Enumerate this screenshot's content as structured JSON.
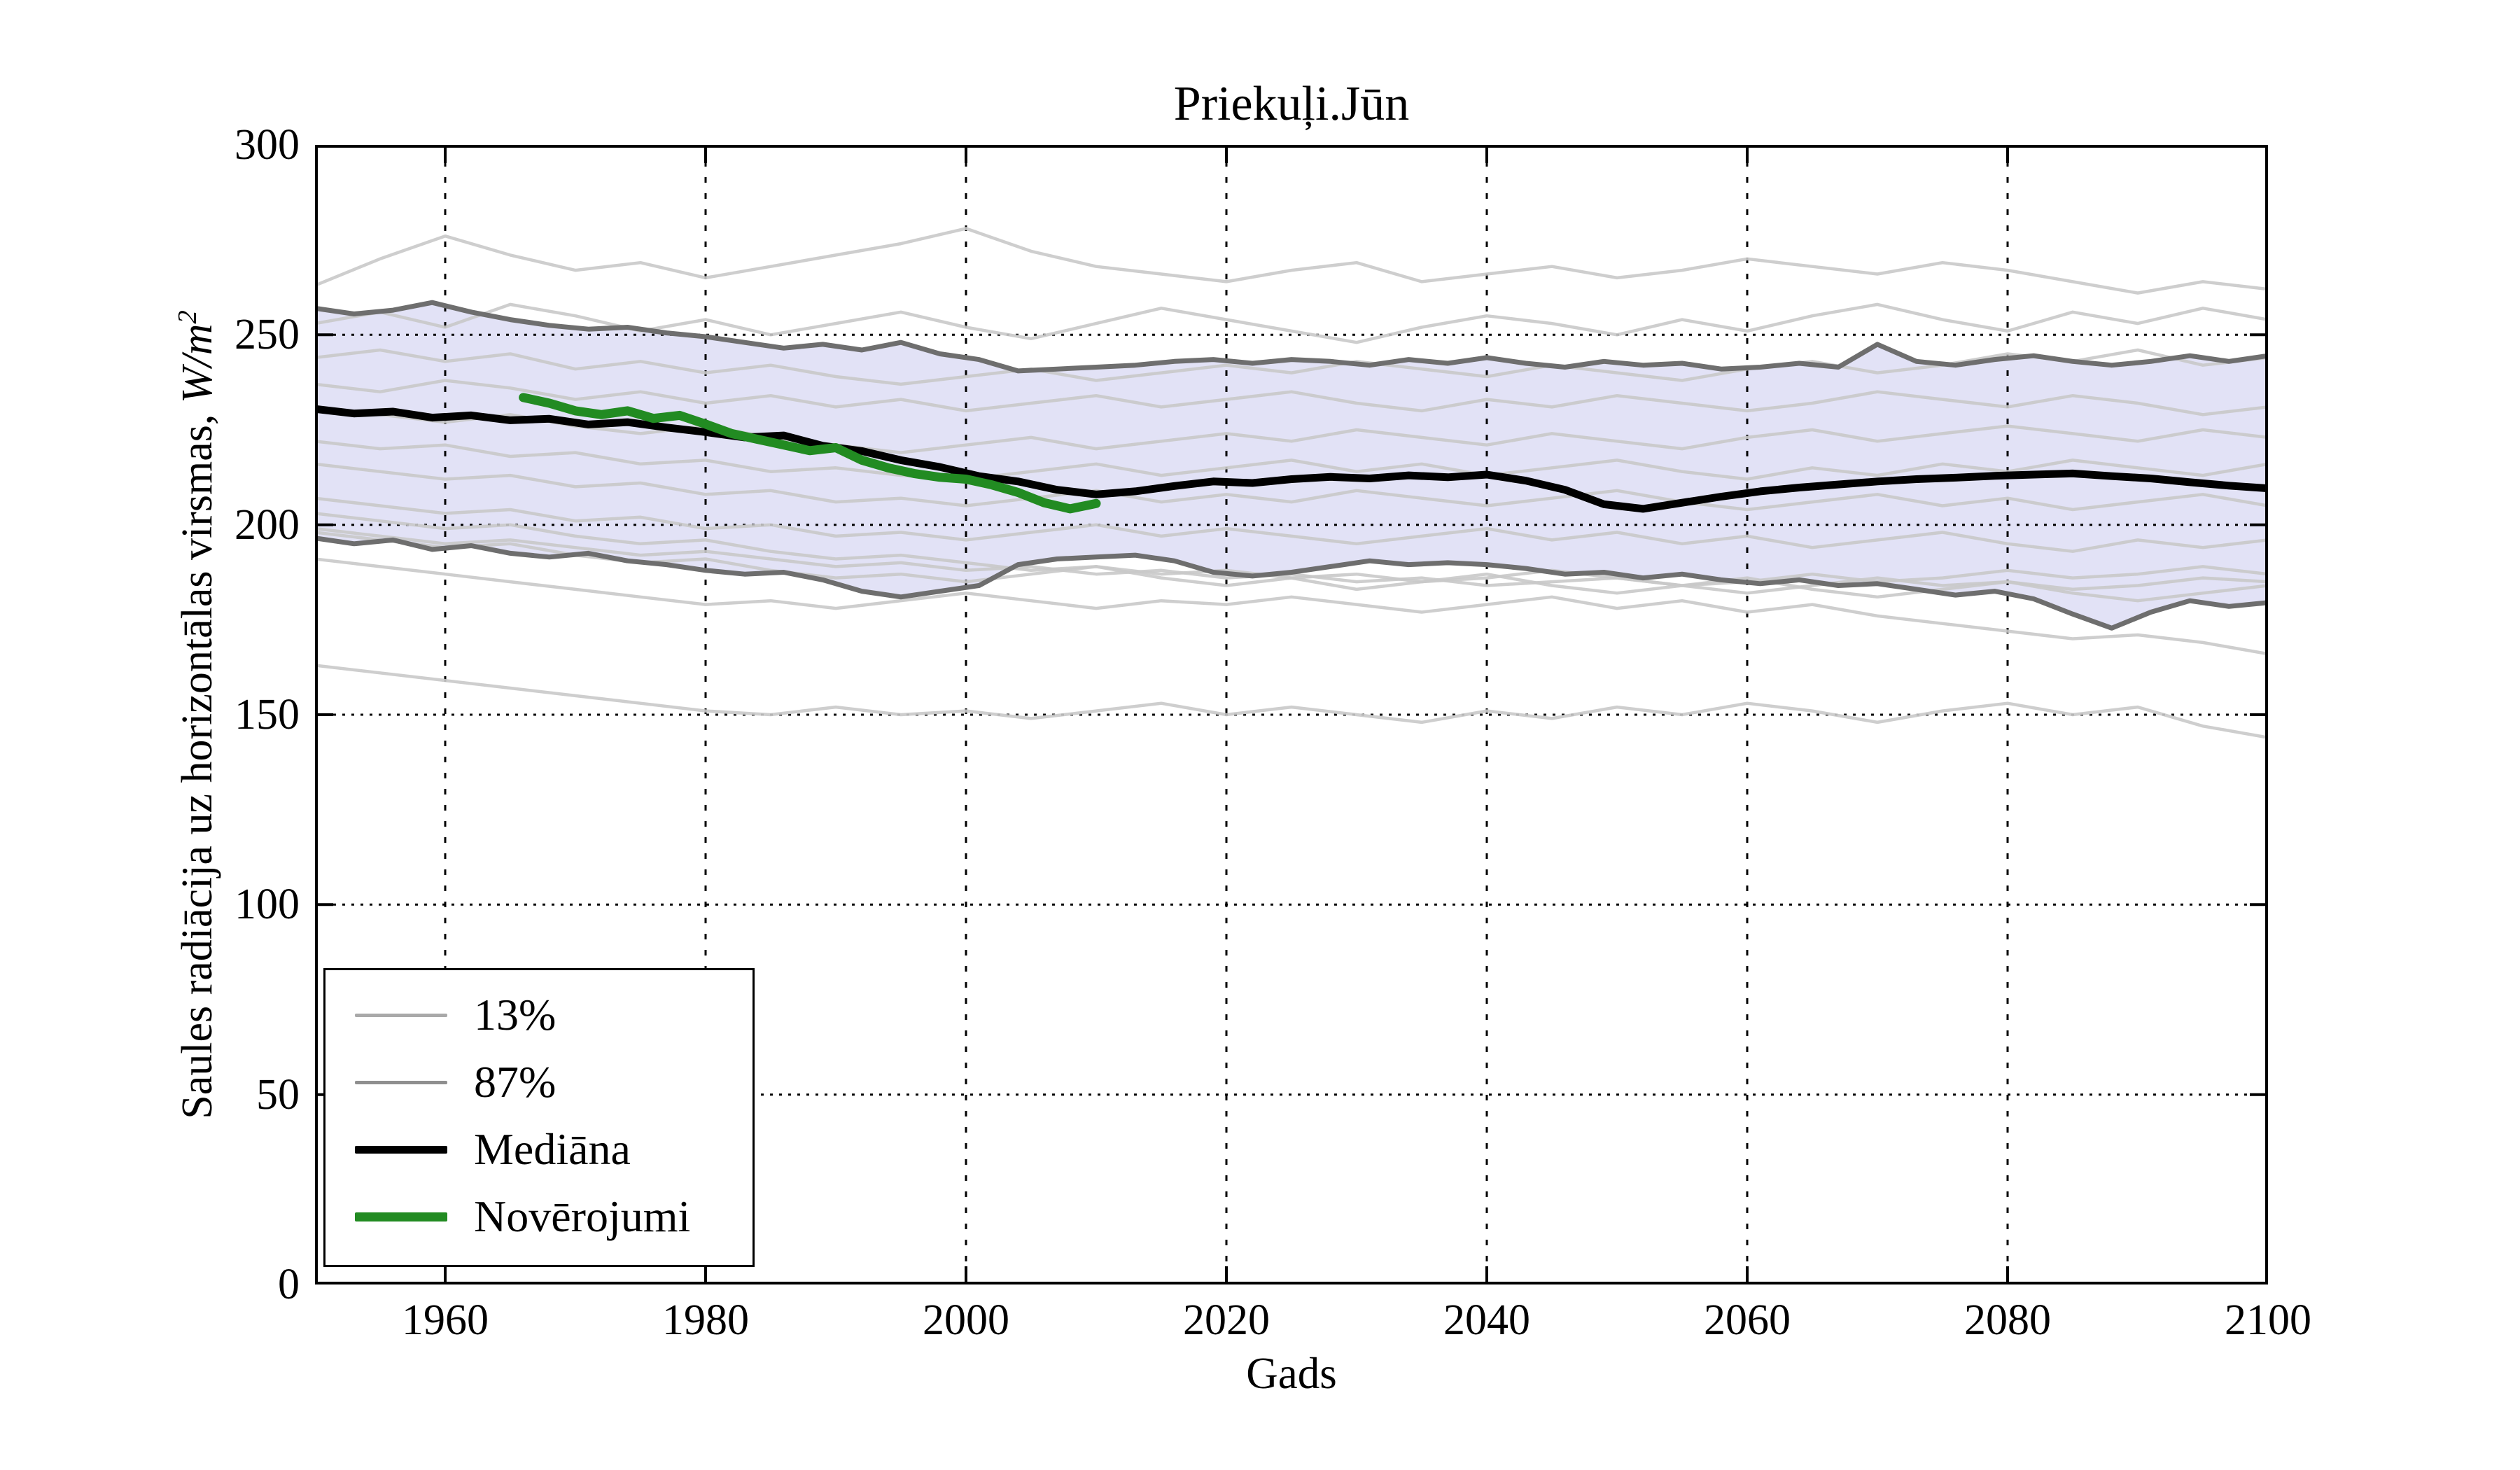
{
  "figure": {
    "title": "Priekuļi.Jūn",
    "xlabel": "Gads",
    "ylabel_text": "Saules radiācija uz horizontālas virsmas, ",
    "ylabel_unit": "W/m",
    "ylabel_exp": "2",
    "background": "#ffffff"
  },
  "legend": {
    "items": [
      {
        "label": "13%",
        "color": "#a9a9a9",
        "line_width": 5
      },
      {
        "label": "87%",
        "color": "#8f8f8f",
        "line_width": 5
      },
      {
        "label": "Mediāna",
        "color": "#000000",
        "line_width": 11
      },
      {
        "label": "Novērojumi",
        "color": "#228b22",
        "line_width": 13
      }
    ]
  },
  "chart_data": {
    "type": "line",
    "title": "Priekuļi.Jūn",
    "xlabel": "Gads",
    "ylabel": "Saules radiācija uz horizontālas virsmas, W/m²",
    "x_range": [
      1950,
      2100
    ],
    "y_range": [
      0,
      300
    ],
    "x_ticks": [
      1960,
      1980,
      2000,
      2020,
      2040,
      2060,
      2080,
      2100
    ],
    "y_ticks": [
      0,
      50,
      100,
      150,
      200,
      250,
      300
    ],
    "grid": "dotted",
    "grid_color": "#000000",
    "band_fill": "#e2e2f6",
    "band_name": "13-87% interval",
    "series": [
      {
        "name": "ensemble-1",
        "role": "ensemble",
        "color": "#c9c9c9",
        "width": 4.5,
        "opacity": 0.9,
        "x_start": 1950,
        "x_step": 5,
        "values": [
          263,
          270,
          276,
          271,
          267,
          269,
          265,
          268,
          271,
          274,
          278,
          272,
          268,
          266,
          264,
          267,
          269,
          264,
          266,
          268,
          265,
          267,
          270,
          268,
          266,
          269,
          267,
          264,
          261,
          264,
          262
        ]
      },
      {
        "name": "ensemble-2",
        "role": "ensemble",
        "color": "#c9c9c9",
        "width": 4.5,
        "opacity": 0.9,
        "x_start": 1950,
        "x_step": 5,
        "values": [
          253,
          256,
          252,
          258,
          255,
          251,
          254,
          250,
          253,
          256,
          252,
          249,
          253,
          257,
          254,
          251,
          248,
          252,
          255,
          253,
          250,
          254,
          251,
          255,
          258,
          254,
          251,
          256,
          253,
          257,
          254
        ]
      },
      {
        "name": "ensemble-3",
        "role": "ensemble",
        "color": "#c9c9c9",
        "width": 4.5,
        "opacity": 0.9,
        "x_start": 1950,
        "x_step": 5,
        "values": [
          244,
          246,
          243,
          245,
          241,
          243,
          240,
          242,
          239,
          237,
          239,
          241,
          238,
          240,
          242,
          240,
          243,
          241,
          239,
          242,
          240,
          238,
          241,
          243,
          240,
          242,
          245,
          243,
          246,
          242,
          244
        ]
      },
      {
        "name": "ensemble-4",
        "role": "ensemble",
        "color": "#c9c9c9",
        "width": 4.5,
        "opacity": 0.9,
        "x_start": 1950,
        "x_step": 5,
        "values": [
          237,
          235,
          238,
          236,
          233,
          235,
          232,
          234,
          231,
          233,
          230,
          232,
          234,
          231,
          233,
          235,
          232,
          230,
          233,
          231,
          234,
          232,
          230,
          232,
          235,
          233,
          231,
          234,
          232,
          229,
          231
        ]
      },
      {
        "name": "ensemble-5",
        "role": "ensemble",
        "color": "#c9c9c9",
        "width": 4.5,
        "opacity": 0.9,
        "x_start": 1950,
        "x_step": 5,
        "values": [
          231,
          229,
          227,
          229,
          226,
          224,
          226,
          223,
          221,
          219,
          221,
          223,
          220,
          222,
          224,
          222,
          225,
          223,
          221,
          224,
          222,
          220,
          223,
          225,
          222,
          224,
          226,
          224,
          222,
          225,
          223
        ]
      },
      {
        "name": "ensemble-6",
        "role": "ensemble",
        "color": "#c9c9c9",
        "width": 4.5,
        "opacity": 0.9,
        "x_start": 1950,
        "x_step": 5,
        "values": [
          222,
          220,
          221,
          218,
          219,
          216,
          217,
          214,
          215,
          213,
          212,
          214,
          216,
          213,
          215,
          217,
          214,
          216,
          213,
          215,
          217,
          214,
          212,
          215,
          213,
          216,
          214,
          217,
          215,
          213,
          216
        ]
      },
      {
        "name": "ensemble-7",
        "role": "ensemble",
        "color": "#c9c9c9",
        "width": 4.5,
        "opacity": 0.9,
        "x_start": 1950,
        "x_step": 5,
        "values": [
          216,
          214,
          212,
          213,
          210,
          211,
          208,
          209,
          206,
          207,
          205,
          207,
          209,
          206,
          208,
          206,
          209,
          207,
          205,
          207,
          209,
          206,
          204,
          206,
          208,
          205,
          207,
          204,
          206,
          208,
          205
        ]
      },
      {
        "name": "ensemble-8",
        "role": "ensemble",
        "color": "#c9c9c9",
        "width": 4.5,
        "opacity": 0.9,
        "x_start": 1950,
        "x_step": 5,
        "values": [
          207,
          205,
          203,
          204,
          201,
          202,
          199,
          200,
          197,
          198,
          196,
          198,
          200,
          197,
          199,
          197,
          195,
          197,
          199,
          196,
          198,
          195,
          197,
          194,
          196,
          198,
          195,
          193,
          196,
          194,
          196
        ]
      },
      {
        "name": "ensemble-9",
        "role": "ensemble",
        "color": "#c9c9c9",
        "width": 4.5,
        "opacity": 0.9,
        "x_start": 1950,
        "x_step": 5,
        "values": [
          203,
          201,
          199,
          200,
          197,
          195,
          196,
          193,
          191,
          192,
          190,
          188,
          189,
          187,
          188,
          186,
          187,
          185,
          186,
          188,
          186,
          184,
          185,
          187,
          185,
          186,
          188,
          186,
          187,
          189,
          187
        ]
      },
      {
        "name": "ensemble-10",
        "role": "ensemble",
        "color": "#c9c9c9",
        "width": 4.5,
        "opacity": 0.9,
        "x_start": 1950,
        "x_step": 5,
        "values": [
          199,
          197,
          195,
          196,
          194,
          192,
          193,
          191,
          189,
          190,
          188,
          189,
          187,
          188,
          186,
          187,
          185,
          186,
          184,
          185,
          186,
          184,
          182,
          184,
          186,
          184,
          185,
          183,
          184,
          186,
          185
        ]
      },
      {
        "name": "ensemble-11",
        "role": "ensemble",
        "color": "#c9c9c9",
        "width": 4.5,
        "opacity": 0.9,
        "x_start": 1950,
        "x_step": 5,
        "values": [
          198,
          196,
          194,
          195,
          192,
          190,
          191,
          188,
          186,
          187,
          185,
          187,
          189,
          186,
          184,
          186,
          183,
          185,
          187,
          184,
          182,
          184,
          186,
          183,
          181,
          183,
          185,
          182,
          180,
          182,
          184
        ]
      },
      {
        "name": "ensemble-12",
        "role": "ensemble",
        "color": "#c9c9c9",
        "width": 4.5,
        "opacity": 0.9,
        "x_start": 1950,
        "x_step": 5,
        "values": [
          191,
          189,
          187,
          185,
          183,
          181,
          179,
          180,
          178,
          180,
          182,
          180,
          178,
          180,
          179,
          181,
          179,
          177,
          179,
          181,
          178,
          180,
          177,
          179,
          176,
          174,
          172,
          170,
          171,
          169,
          166
        ]
      },
      {
        "name": "ensemble-13",
        "role": "ensemble",
        "color": "#c9c9c9",
        "width": 4.5,
        "opacity": 0.9,
        "x_start": 1950,
        "x_step": 5,
        "values": [
          163,
          161,
          159,
          157,
          155,
          153,
          151,
          150,
          152,
          150,
          151,
          149,
          151,
          153,
          150,
          152,
          150,
          148,
          151,
          149,
          152,
          150,
          153,
          151,
          148,
          151,
          153,
          150,
          152,
          147,
          144
        ]
      },
      {
        "name": "87%",
        "role": "upper-edge",
        "color": "#6e6e6e",
        "width": 7,
        "opacity": 1,
        "x_start": 1950,
        "x_step": 3,
        "values": [
          257,
          255.5,
          256.5,
          258.5,
          256,
          254,
          252.5,
          251.5,
          252,
          250.5,
          249.5,
          248,
          246.5,
          247.5,
          246,
          248,
          245,
          243.5,
          240.5,
          241,
          241.5,
          242,
          243,
          243.5,
          242.5,
          243.5,
          243,
          242,
          243.5,
          242.5,
          244,
          242.5,
          241.5,
          243,
          242,
          242.5,
          241,
          241.5,
          242.5,
          241.5,
          247.5,
          243,
          242,
          243.5,
          244.5,
          243,
          242,
          243,
          244.5,
          243,
          244.5
        ]
      },
      {
        "name": "13%",
        "role": "lower-edge",
        "color": "#6e6e6e",
        "width": 7,
        "opacity": 1,
        "x_start": 1950,
        "x_step": 3,
        "values": [
          196.5,
          195,
          196,
          193.5,
          194.5,
          192.5,
          191.5,
          192.5,
          190.5,
          189.5,
          188,
          187,
          187.5,
          185.5,
          182.5,
          181,
          182.5,
          184,
          189.5,
          191,
          191.5,
          192,
          190.5,
          187.5,
          186.5,
          187.5,
          189,
          190.5,
          189.5,
          190,
          189.5,
          188.5,
          187,
          187.5,
          186,
          187,
          185.5,
          184.5,
          185.5,
          184,
          184.5,
          183,
          181.5,
          182.5,
          180.5,
          176.5,
          172.8,
          177,
          180,
          178.5,
          179.5
        ]
      },
      {
        "name": "Mediāna",
        "role": "median",
        "color": "#000000",
        "width": 11,
        "opacity": 1,
        "x_start": 1950,
        "x_step": 3,
        "values": [
          230.5,
          229.3,
          229.8,
          228.2,
          228.8,
          227.5,
          227.9,
          226.4,
          227,
          225.6,
          224.4,
          223,
          223.5,
          220.8,
          219.4,
          217,
          215.2,
          212.8,
          211.4,
          209.2,
          208,
          208.8,
          210.2,
          211.4,
          211,
          212,
          212.6,
          212.2,
          213,
          212.5,
          213.2,
          211.6,
          209.2,
          205.4,
          204.2,
          205.8,
          207.4,
          208.8,
          209.8,
          210.6,
          211.4,
          212,
          212.4,
          212.9,
          213.2,
          213.5,
          212.8,
          212.2,
          211.2,
          210.3,
          209.6
        ]
      },
      {
        "name": "Novērojumi",
        "role": "observations",
        "color": "#228b22",
        "width": 13,
        "opacity": 1,
        "x_start": 1966,
        "x_step": 2,
        "values": [
          233.5,
          232,
          230,
          229,
          230,
          228,
          228.8,
          226.5,
          224,
          222.5,
          221,
          219.5,
          220.3,
          217,
          215,
          213.5,
          212.5,
          212,
          210.5,
          208.5,
          205.8,
          204.2,
          205.6
        ]
      }
    ]
  }
}
